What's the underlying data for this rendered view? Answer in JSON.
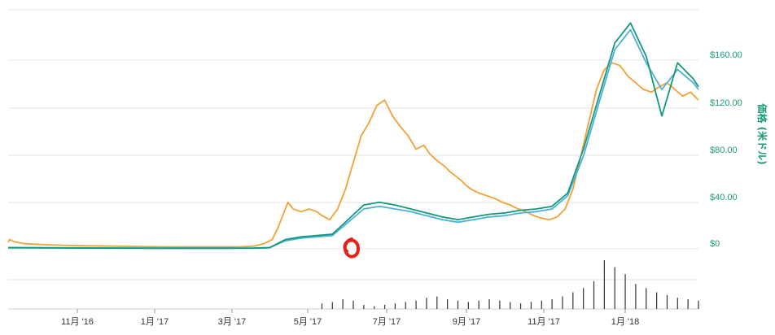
{
  "chart_data": {
    "type": "line",
    "ylabel": "価格 (米ドル)",
    "y_ticks": [
      "$0",
      "$40.00",
      "$80.00",
      "$120.00",
      "$160.00"
    ],
    "x_ticks": [
      "11月 '16",
      "1月 '17",
      "3月 '17",
      "5月 '17",
      "7月 '17",
      "9月 '17",
      "11月 '17",
      "1月 '18"
    ],
    "ylim": [
      0,
      180
    ],
    "grid": true,
    "colors": {
      "orange": "#f4a035",
      "teal": "#13977f",
      "blue": "#4cb0d6",
      "volume": "#333333",
      "marker": "#e8201c",
      "axis_text": "#1a9b7a"
    },
    "series": [
      {
        "color": "orange",
        "points": [
          [
            0,
            5
          ],
          [
            3,
            7
          ],
          [
            8,
            6
          ],
          [
            15,
            5
          ],
          [
            30,
            4
          ],
          [
            50,
            3.5
          ],
          [
            80,
            3
          ],
          [
            120,
            2.5
          ],
          [
            160,
            2.2
          ],
          [
            200,
            2
          ],
          [
            240,
            1.8
          ],
          [
            280,
            1.6
          ],
          [
            320,
            1.5
          ],
          [
            360,
            1.4
          ],
          [
            400,
            1.4
          ],
          [
            440,
            1.5
          ],
          [
            470,
            2
          ],
          [
            490,
            4
          ],
          [
            505,
            7
          ],
          [
            515,
            15
          ],
          [
            525,
            25
          ],
          [
            535,
            35
          ],
          [
            545,
            30
          ],
          [
            560,
            28
          ],
          [
            575,
            30
          ],
          [
            590,
            28
          ],
          [
            600,
            25
          ],
          [
            615,
            22
          ],
          [
            630,
            30
          ],
          [
            645,
            45
          ],
          [
            660,
            65
          ],
          [
            675,
            85
          ],
          [
            690,
            95
          ],
          [
            705,
            108
          ],
          [
            720,
            112
          ],
          [
            735,
            100
          ],
          [
            750,
            92
          ],
          [
            765,
            85
          ],
          [
            780,
            75
          ],
          [
            795,
            78
          ],
          [
            805,
            72
          ],
          [
            815,
            68
          ],
          [
            825,
            65
          ],
          [
            835,
            62
          ],
          [
            845,
            58
          ],
          [
            855,
            55
          ],
          [
            865,
            52
          ],
          [
            875,
            48
          ],
          [
            885,
            45
          ],
          [
            900,
            42
          ],
          [
            915,
            40
          ],
          [
            930,
            38
          ],
          [
            945,
            35
          ],
          [
            960,
            33
          ],
          [
            975,
            30
          ],
          [
            990,
            28
          ],
          [
            1005,
            25
          ],
          [
            1020,
            23
          ],
          [
            1035,
            22
          ],
          [
            1050,
            24
          ],
          [
            1065,
            30
          ],
          [
            1080,
            45
          ],
          [
            1095,
            70
          ],
          [
            1110,
            95
          ],
          [
            1125,
            120
          ],
          [
            1140,
            135
          ],
          [
            1155,
            140
          ],
          [
            1170,
            138
          ],
          [
            1185,
            130
          ],
          [
            1200,
            125
          ],
          [
            1215,
            120
          ],
          [
            1230,
            118
          ],
          [
            1245,
            122
          ],
          [
            1260,
            125
          ],
          [
            1275,
            120
          ],
          [
            1290,
            115
          ],
          [
            1305,
            118
          ],
          [
            1320,
            112
          ]
        ]
      },
      {
        "color": "blue",
        "points": [
          [
            0,
            1
          ],
          [
            100,
            0.8
          ],
          [
            200,
            0.6
          ],
          [
            300,
            0.5
          ],
          [
            400,
            0.5
          ],
          [
            470,
            0.6
          ],
          [
            500,
            1
          ],
          [
            530,
            6
          ],
          [
            560,
            8
          ],
          [
            590,
            9
          ],
          [
            620,
            10
          ],
          [
            650,
            20
          ],
          [
            680,
            30
          ],
          [
            710,
            32
          ],
          [
            740,
            30
          ],
          [
            770,
            28
          ],
          [
            800,
            25
          ],
          [
            830,
            22
          ],
          [
            860,
            20
          ],
          [
            890,
            22
          ],
          [
            920,
            24
          ],
          [
            950,
            25
          ],
          [
            980,
            27
          ],
          [
            1010,
            28
          ],
          [
            1040,
            30
          ],
          [
            1070,
            40
          ],
          [
            1100,
            70
          ],
          [
            1130,
            110
          ],
          [
            1160,
            150
          ],
          [
            1190,
            165
          ],
          [
            1220,
            140
          ],
          [
            1250,
            120
          ],
          [
            1280,
            135
          ],
          [
            1310,
            125
          ],
          [
            1320,
            120
          ]
        ]
      },
      {
        "color": "teal",
        "points": [
          [
            0,
            0.8
          ],
          [
            100,
            0.6
          ],
          [
            200,
            0.5
          ],
          [
            300,
            0.4
          ],
          [
            400,
            0.4
          ],
          [
            470,
            0.5
          ],
          [
            500,
            0.8
          ],
          [
            530,
            7
          ],
          [
            560,
            9
          ],
          [
            590,
            10
          ],
          [
            620,
            11
          ],
          [
            650,
            22
          ],
          [
            680,
            33
          ],
          [
            710,
            35
          ],
          [
            740,
            33
          ],
          [
            770,
            30
          ],
          [
            800,
            27
          ],
          [
            830,
            24
          ],
          [
            860,
            22
          ],
          [
            890,
            24
          ],
          [
            920,
            26
          ],
          [
            950,
            27
          ],
          [
            980,
            29
          ],
          [
            1010,
            30
          ],
          [
            1040,
            32
          ],
          [
            1070,
            42
          ],
          [
            1100,
            75
          ],
          [
            1130,
            115
          ],
          [
            1160,
            155
          ],
          [
            1190,
            170
          ],
          [
            1220,
            145
          ],
          [
            1250,
            100
          ],
          [
            1280,
            140
          ],
          [
            1310,
            128
          ],
          [
            1320,
            122
          ]
        ]
      }
    ],
    "volume": [
      [
        600,
        0.04
      ],
      [
        620,
        0.05
      ],
      [
        640,
        0.07
      ],
      [
        660,
        0.06
      ],
      [
        680,
        0.03
      ],
      [
        700,
        0.02
      ],
      [
        720,
        0.03
      ],
      [
        740,
        0.04
      ],
      [
        760,
        0.05
      ],
      [
        780,
        0.06
      ],
      [
        800,
        0.08
      ],
      [
        820,
        0.09
      ],
      [
        840,
        0.07
      ],
      [
        860,
        0.06
      ],
      [
        880,
        0.05
      ],
      [
        900,
        0.06
      ],
      [
        920,
        0.07
      ],
      [
        940,
        0.06
      ],
      [
        960,
        0.05
      ],
      [
        980,
        0.04
      ],
      [
        1000,
        0.05
      ],
      [
        1020,
        0.06
      ],
      [
        1040,
        0.07
      ],
      [
        1060,
        0.09
      ],
      [
        1080,
        0.12
      ],
      [
        1100,
        0.15
      ],
      [
        1120,
        0.2
      ],
      [
        1140,
        0.35
      ],
      [
        1160,
        0.3
      ],
      [
        1180,
        0.25
      ],
      [
        1200,
        0.18
      ],
      [
        1220,
        0.15
      ],
      [
        1240,
        0.12
      ],
      [
        1260,
        0.1
      ],
      [
        1280,
        0.08
      ],
      [
        1300,
        0.07
      ],
      [
        1320,
        0.06
      ]
    ]
  }
}
